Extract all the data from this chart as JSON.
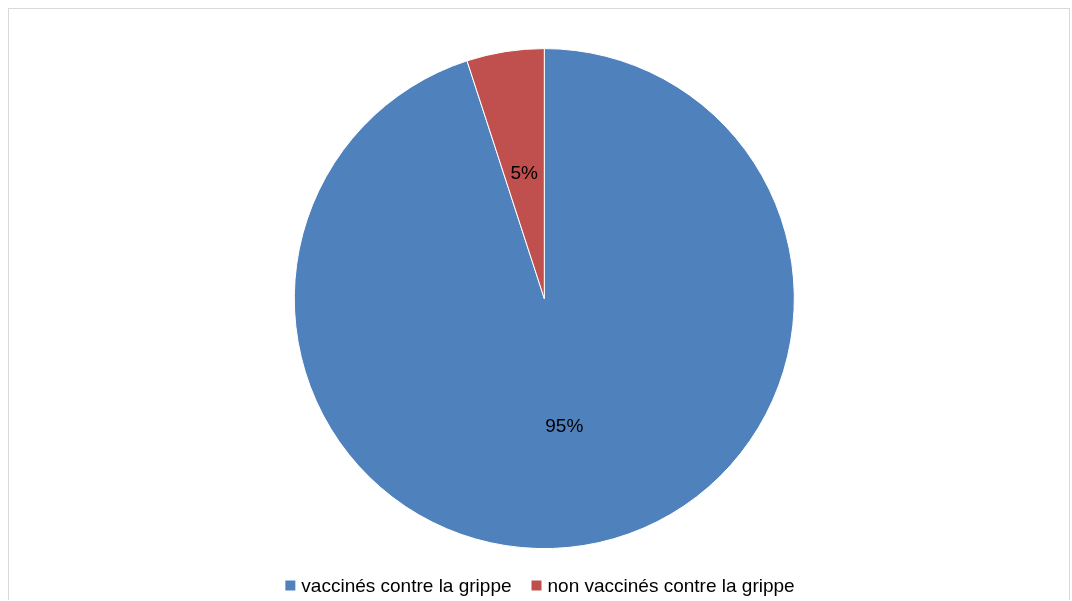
{
  "chart_data": {
    "type": "pie",
    "categories": [
      "vaccinés contre la grippe",
      "non vaccinés contre la grippe"
    ],
    "values": [
      95,
      5
    ],
    "colors": [
      "#4f81bd",
      "#c0504d"
    ],
    "value_labels": [
      "95%",
      "5%"
    ],
    "legend": "bottom"
  }
}
